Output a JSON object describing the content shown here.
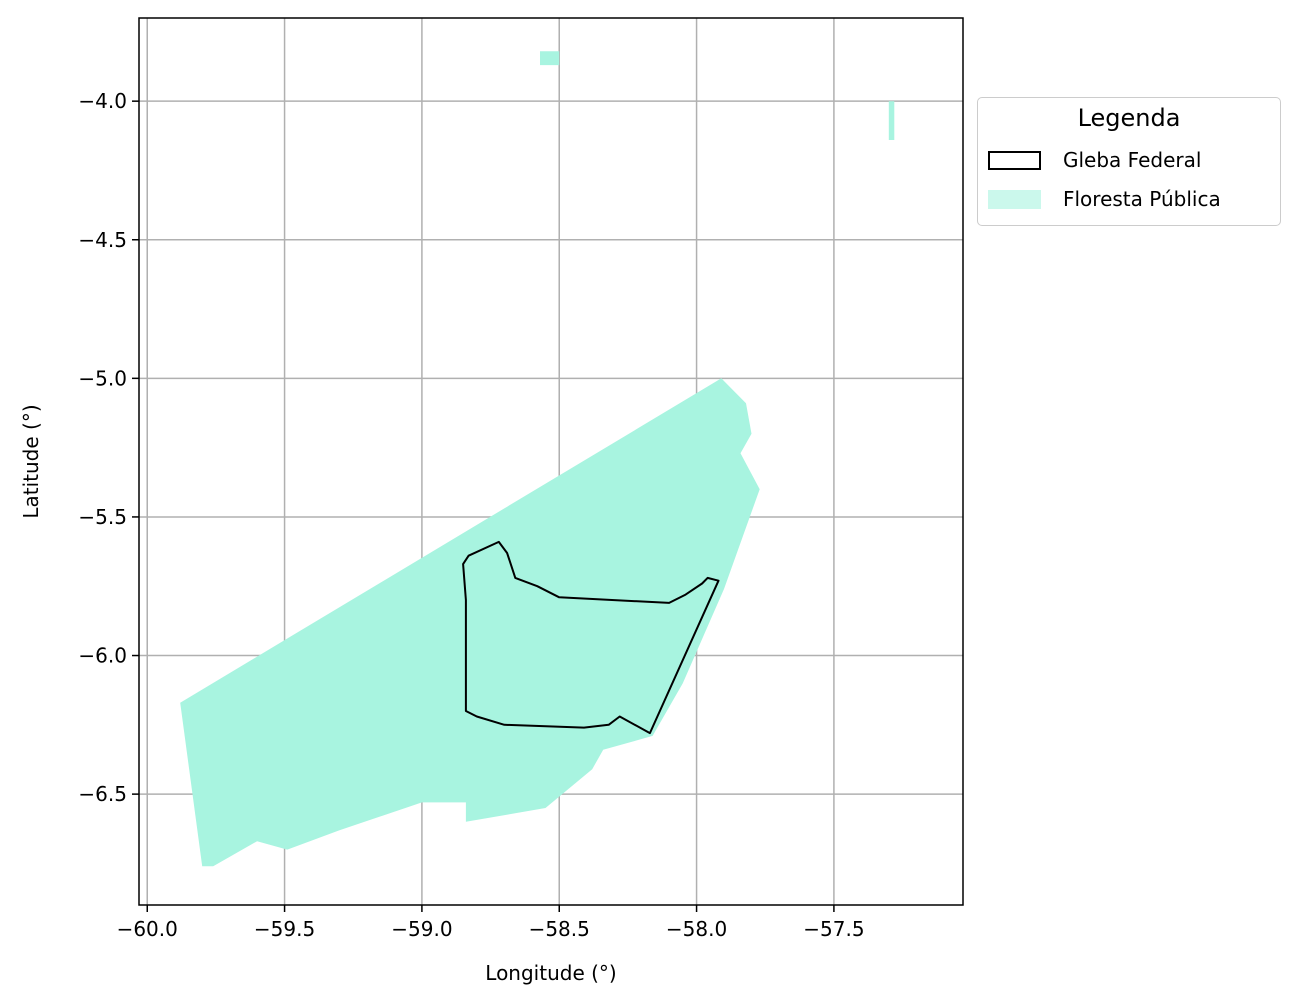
{
  "chart_data": {
    "type": "map",
    "xlabel": "Longitude (°)",
    "ylabel": "Latitude (°)",
    "xlim": [
      -60.03,
      -57.03
    ],
    "ylim": [
      -6.9,
      -3.7
    ],
    "xticks": [
      -60.0,
      -59.5,
      -59.0,
      -58.5,
      -58.0,
      -57.5
    ],
    "yticks": [
      -4.0,
      -4.5,
      -5.0,
      -5.5,
      -6.0,
      -6.5
    ],
    "xtick_labels": [
      "−60.0",
      "−59.5",
      "−59.0",
      "−58.5",
      "−58.0",
      "−57.5"
    ],
    "ytick_labels": [
      "−4.0",
      "−4.5",
      "−5.0",
      "−5.5",
      "−6.0",
      "−6.5"
    ],
    "grid": true,
    "legend": {
      "title": "Legenda",
      "position": "outside-right-top",
      "entries": [
        {
          "label": "Gleba Federal",
          "style": "outline",
          "color": "#000000"
        },
        {
          "label": "Floresta Pública",
          "style": "fill",
          "color": "#a8f4e0"
        }
      ]
    },
    "layers": [
      {
        "name": "Floresta Pública",
        "color": "#a8f4e0",
        "polygons": [
          [
            [
              -59.88,
              -6.17
            ],
            [
              -57.91,
              -5.0
            ],
            [
              -57.82,
              -5.09
            ],
            [
              -57.8,
              -5.2
            ],
            [
              -57.84,
              -5.27
            ],
            [
              -57.77,
              -5.4
            ],
            [
              -57.9,
              -5.76
            ],
            [
              -58.05,
              -6.1
            ],
            [
              -58.16,
              -6.29
            ],
            [
              -58.34,
              -6.34
            ],
            [
              -58.38,
              -6.41
            ],
            [
              -58.55,
              -6.55
            ],
            [
              -58.84,
              -6.6
            ],
            [
              -58.84,
              -6.53
            ],
            [
              -59.0,
              -6.53
            ],
            [
              -59.06,
              -6.55
            ],
            [
              -59.3,
              -6.63
            ],
            [
              -59.49,
              -6.7
            ],
            [
              -59.6,
              -6.67
            ],
            [
              -59.76,
              -6.76
            ],
            [
              -59.8,
              -6.76
            ]
          ],
          [
            [
              -58.57,
              -3.82
            ],
            [
              -58.5,
              -3.82
            ],
            [
              -58.5,
              -3.87
            ],
            [
              -58.57,
              -3.87
            ]
          ],
          [
            [
              -57.3,
              -4.0
            ],
            [
              -57.28,
              -4.0
            ],
            [
              -57.28,
              -4.14
            ],
            [
              -57.3,
              -4.14
            ]
          ]
        ]
      },
      {
        "name": "Gleba Federal",
        "color": "#000000",
        "polygons": [
          [
            [
              -58.83,
              -5.64
            ],
            [
              -58.72,
              -5.59
            ],
            [
              -58.69,
              -5.63
            ],
            [
              -58.66,
              -5.72
            ],
            [
              -58.58,
              -5.75
            ],
            [
              -58.5,
              -5.79
            ],
            [
              -58.1,
              -5.81
            ],
            [
              -58.04,
              -5.78
            ],
            [
              -57.98,
              -5.74
            ],
            [
              -57.96,
              -5.72
            ],
            [
              -57.92,
              -5.73
            ],
            [
              -58.17,
              -6.28
            ],
            [
              -58.28,
              -6.22
            ],
            [
              -58.32,
              -6.25
            ],
            [
              -58.41,
              -6.26
            ],
            [
              -58.7,
              -6.25
            ],
            [
              -58.8,
              -6.22
            ],
            [
              -58.84,
              -6.2
            ],
            [
              -58.84,
              -6.1
            ],
            [
              -58.84,
              -5.95
            ],
            [
              -58.84,
              -5.8
            ],
            [
              -58.85,
              -5.67
            ]
          ]
        ]
      }
    ]
  }
}
